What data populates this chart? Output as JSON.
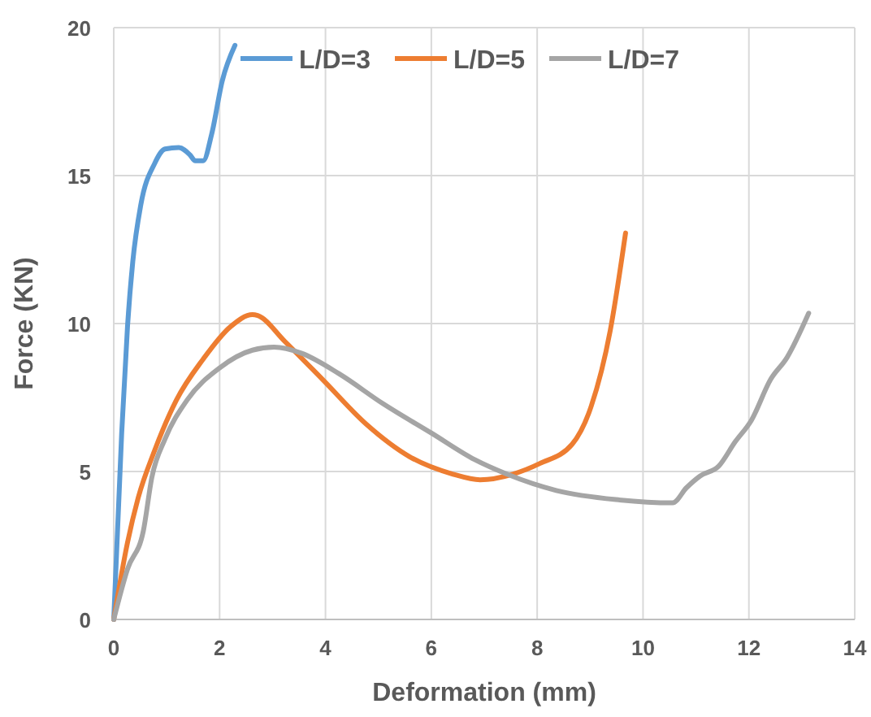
{
  "chart_data": {
    "type": "line",
    "xlabel": "Deformation (mm)",
    "ylabel": "Force (KN)",
    "xlim": [
      0,
      14
    ],
    "xticks": [
      0,
      2,
      4,
      6,
      8,
      10,
      12,
      14
    ],
    "ylim": [
      0,
      20
    ],
    "yticks": [
      0,
      5,
      10,
      15,
      20
    ],
    "grid": true,
    "legend": "top",
    "marker": "none",
    "line_style": "solid",
    "series": [
      {
        "name": "L/D=3",
        "color": "#5b9bd5",
        "x": [
          0,
          0.15,
          0.26,
          0.36,
          0.51,
          0.77,
          0.97,
          1.23,
          1.44,
          1.54,
          1.69,
          1.85,
          2.05,
          2.29
        ],
        "values": [
          0,
          6.3,
          9.9,
          12.1,
          14.0,
          15.4,
          15.9,
          15.95,
          15.7,
          15.5,
          15.5,
          16.4,
          18.2,
          19.4
        ]
      },
      {
        "name": "L/D=5",
        "color": "#ed7d31",
        "x": [
          0,
          0.26,
          0.46,
          0.77,
          1.18,
          1.69,
          2.21,
          2.62,
          2.72,
          3.23,
          3.95,
          4.77,
          5.59,
          6.41,
          6.92,
          7.54,
          8.05,
          8.66,
          9.02,
          9.38,
          9.67
        ],
        "values": [
          0,
          2.6,
          4.1,
          5.7,
          7.4,
          8.8,
          9.9,
          10.3,
          10.27,
          9.4,
          8.1,
          6.6,
          5.5,
          4.91,
          4.72,
          4.91,
          5.27,
          5.92,
          7.2,
          9.76,
          13.06
        ]
      },
      {
        "name": "L/D=7",
        "color": "#a5a5a5",
        "x": [
          0,
          0.26,
          0.56,
          0.72,
          0.97,
          1.38,
          2.0,
          2.62,
          3.03,
          3.54,
          4.26,
          5.08,
          6.0,
          6.82,
          7.43,
          8.36,
          9.49,
          10.56,
          10.82,
          11.08,
          11.43,
          11.74,
          12.05,
          12.41,
          12.72,
          13.13
        ],
        "values": [
          0,
          1.7,
          3.0,
          4.8,
          6.1,
          7.4,
          8.5,
          9.1,
          9.2,
          9.0,
          8.3,
          7.3,
          6.3,
          5.4,
          4.91,
          4.36,
          4.05,
          3.94,
          4.45,
          4.85,
          5.18,
          6.0,
          6.74,
          8.11,
          8.85,
          10.35
        ]
      }
    ]
  }
}
